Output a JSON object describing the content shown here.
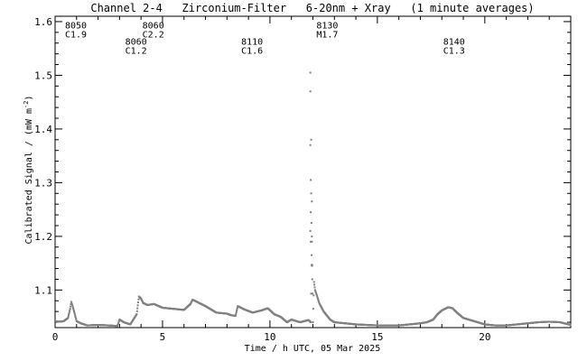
{
  "chart_data": {
    "type": "scatter",
    "title": "Channel 2-4   Zirconium-Filter   6-20nm + Xray   (1 minute averages)",
    "xlabel": "Time / h UTC, 05 Mar 2025",
    "ylabel": "Calibrated Signal / (mW m",
    "ylabel_sup": "-2",
    "ylabel_close": ")",
    "xlim": [
      0,
      24
    ],
    "ylim": [
      1.03,
      1.61
    ],
    "x_ticks": [
      0,
      5,
      10,
      15,
      20
    ],
    "x_tick_labels": [
      "0",
      "5",
      "10",
      "15",
      "20"
    ],
    "y_ticks": [
      1.1,
      1.2,
      1.3,
      1.4,
      1.5,
      1.6
    ],
    "y_tick_labels": [
      "1.1",
      "1.2",
      "1.3",
      "1.4",
      "1.5",
      "1.6"
    ],
    "series_color": "#808080",
    "series": [
      {
        "x": [
          0.0,
          0.2,
          0.4,
          0.6,
          0.7,
          0.75,
          0.8,
          0.9,
          1.0,
          1.2,
          1.5,
          2.0,
          2.5,
          2.9,
          3.0,
          3.2,
          3.5,
          3.8,
          3.9,
          4.0,
          4.1,
          4.3,
          4.6,
          5.0,
          5.5,
          6.0,
          6.3,
          6.4,
          6.6,
          7.0,
          7.5,
          8.0,
          8.2,
          8.4,
          8.5,
          8.8,
          9.2,
          9.6,
          9.9,
          10.2,
          10.5,
          10.8,
          11.0,
          11.4,
          11.8,
          11.9,
          11.95,
          12.0,
          12.05,
          12.1,
          12.2,
          12.3,
          12.5,
          12.8,
          13.0,
          13.5,
          14.0,
          15.0,
          16.0,
          16.5,
          17.0,
          17.3,
          17.6,
          17.8,
          18.0,
          18.3,
          18.5,
          18.7,
          19.0,
          19.5,
          20.0,
          20.5,
          21.0,
          21.5,
          22.0,
          22.5,
          23.0,
          23.5,
          24.0
        ],
        "y": [
          1.042,
          1.041,
          1.042,
          1.048,
          1.065,
          1.078,
          1.072,
          1.058,
          1.042,
          1.038,
          1.034,
          1.035,
          1.034,
          1.033,
          1.045,
          1.04,
          1.036,
          1.055,
          1.088,
          1.084,
          1.076,
          1.072,
          1.074,
          1.067,
          1.065,
          1.063,
          1.074,
          1.082,
          1.078,
          1.07,
          1.058,
          1.056,
          1.053,
          1.052,
          1.07,
          1.064,
          1.058,
          1.062,
          1.066,
          1.055,
          1.05,
          1.04,
          1.045,
          1.04,
          1.044,
          1.04,
          1.2,
          1.04,
          1.115,
          1.1,
          1.088,
          1.075,
          1.06,
          1.045,
          1.04,
          1.038,
          1.036,
          1.034,
          1.034,
          1.036,
          1.038,
          1.04,
          1.045,
          1.055,
          1.062,
          1.068,
          1.066,
          1.058,
          1.048,
          1.042,
          1.036,
          1.034,
          1.034,
          1.036,
          1.038,
          1.04,
          1.041,
          1.04,
          1.035
        ]
      }
    ],
    "flare_points": {
      "x": [
        11.88,
        11.88,
        11.92,
        11.88,
        11.9,
        11.92,
        11.95,
        11.9,
        11.93,
        11.88,
        11.95,
        11.9,
        11.94,
        11.96,
        11.97
      ],
      "y": [
        1.505,
        1.47,
        1.38,
        1.37,
        1.305,
        1.28,
        1.265,
        1.245,
        1.225,
        1.21,
        1.19,
        1.19,
        1.165,
        1.145,
        1.12
      ]
    },
    "annotations": [
      {
        "x": 0.0,
        "y": 1.587,
        "lines": [
          "8050",
          "C1.9"
        ]
      },
      {
        "x": 3.6,
        "y": 1.587,
        "lines": [
          "8060",
          "C2.2"
        ]
      },
      {
        "x": 2.8,
        "y": 1.557,
        "lines": [
          "8060",
          "C1.2"
        ]
      },
      {
        "x": 8.2,
        "y": 1.557,
        "lines": [
          "8110",
          "C1.6"
        ]
      },
      {
        "x": 11.7,
        "y": 1.587,
        "lines": [
          "8130",
          "M1.7"
        ]
      },
      {
        "x": 17.6,
        "y": 1.557,
        "lines": [
          "8140",
          "C1.3"
        ]
      }
    ]
  }
}
